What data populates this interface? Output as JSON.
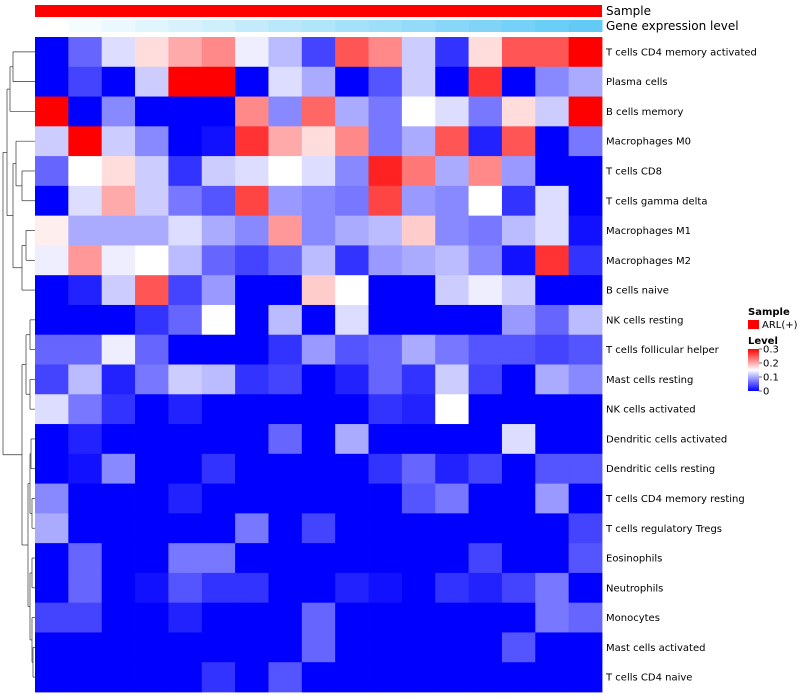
{
  "chart_data": {
    "type": "heatmap",
    "title": "",
    "annotation_tracks": [
      {
        "name": "Sample",
        "label": "Sample"
      },
      {
        "name": "Gene expression level",
        "label": "Gene expression level"
      }
    ],
    "row_labels": [
      "T cells CD4 memory activated",
      "Plasma cells",
      "B cells memory",
      "Macrophages M0",
      "T cells CD8",
      "T cells gamma delta",
      "Macrophages M1",
      "Macrophages M2",
      "B cells naive",
      "NK cells resting",
      "T cells follicular helper",
      "Mast cells resting",
      "NK cells activated",
      "Dendritic cells activated",
      "Dendritic cells resting",
      "T cells CD4 memory resting",
      "T cells regulatory  Tregs",
      "Eosinophils",
      "Neutrophils",
      "Monocytes",
      "Mast cells activated",
      "T cells CD4 naive"
    ],
    "n_columns": 17,
    "values": [
      [
        0.0,
        0.06,
        0.13,
        0.17,
        0.2,
        0.22,
        0.14,
        0.11,
        0.04,
        0.25,
        0.22,
        0.12,
        0.03,
        0.17,
        0.25,
        0.25,
        0.3
      ],
      [
        0.0,
        0.04,
        0.0,
        0.12,
        0.3,
        0.3,
        0.0,
        0.13,
        0.1,
        0.0,
        0.05,
        0.12,
        0.0,
        0.27,
        0.0,
        0.08,
        0.1
      ],
      [
        0.3,
        0.0,
        0.08,
        0.0,
        0.0,
        0.0,
        0.22,
        0.08,
        0.24,
        0.1,
        0.07,
        0.15,
        0.13,
        0.07,
        0.17,
        0.12,
        0.3
      ],
      [
        0.12,
        0.3,
        0.12,
        0.08,
        0.0,
        0.01,
        0.27,
        0.2,
        0.17,
        0.22,
        0.07,
        0.1,
        0.25,
        0.02,
        0.25,
        0.0,
        0.07
      ],
      [
        0.06,
        0.15,
        0.17,
        0.12,
        0.03,
        0.12,
        0.13,
        0.15,
        0.13,
        0.08,
        0.28,
        0.23,
        0.1,
        0.22,
        0.09,
        0.0,
        0.0
      ],
      [
        0.0,
        0.13,
        0.2,
        0.12,
        0.07,
        0.05,
        0.26,
        0.09,
        0.08,
        0.07,
        0.26,
        0.09,
        0.08,
        0.15,
        0.03,
        0.13,
        0.0
      ],
      [
        0.16,
        0.1,
        0.1,
        0.1,
        0.13,
        0.1,
        0.08,
        0.21,
        0.08,
        0.1,
        0.11,
        0.18,
        0.08,
        0.07,
        0.11,
        0.13,
        0.01
      ],
      [
        0.14,
        0.21,
        0.14,
        0.15,
        0.11,
        0.06,
        0.04,
        0.06,
        0.11,
        0.03,
        0.09,
        0.1,
        0.11,
        0.08,
        0.01,
        0.27,
        0.03
      ],
      [
        0.0,
        0.02,
        0.12,
        0.25,
        0.04,
        0.09,
        0.0,
        0.0,
        0.18,
        0.15,
        0.0,
        0.0,
        0.12,
        0.14,
        0.12,
        0.0,
        0.0
      ],
      [
        0.0,
        0.0,
        0.0,
        0.03,
        0.06,
        0.15,
        0.0,
        0.11,
        0.0,
        0.13,
        0.0,
        0.0,
        0.0,
        0.0,
        0.09,
        0.06,
        0.11
      ],
      [
        0.06,
        0.06,
        0.14,
        0.06,
        0.0,
        0.0,
        0.0,
        0.03,
        0.09,
        0.05,
        0.06,
        0.1,
        0.07,
        0.05,
        0.05,
        0.04,
        0.05
      ],
      [
        0.04,
        0.11,
        0.02,
        0.07,
        0.12,
        0.11,
        0.03,
        0.04,
        0.0,
        0.02,
        0.06,
        0.03,
        0.12,
        0.04,
        0.0,
        0.1,
        0.08
      ],
      [
        0.13,
        0.07,
        0.03,
        0.0,
        0.02,
        0.0,
        0.0,
        0.0,
        0.0,
        0.0,
        0.03,
        0.02,
        0.15,
        0.0,
        0.0,
        0.0,
        0.0
      ],
      [
        0.0,
        0.02,
        0.0,
        0.0,
        0.0,
        0.0,
        0.0,
        0.06,
        0.0,
        0.1,
        0.0,
        0.0,
        0.0,
        0.0,
        0.13,
        0.0,
        0.0
      ],
      [
        0.0,
        0.01,
        0.08,
        0.0,
        0.0,
        0.03,
        0.0,
        0.0,
        0.0,
        0.0,
        0.03,
        0.06,
        0.02,
        0.04,
        0.0,
        0.05,
        0.05
      ],
      [
        0.08,
        0.0,
        0.0,
        0.0,
        0.02,
        0.0,
        0.0,
        0.0,
        0.0,
        0.0,
        0.0,
        0.05,
        0.07,
        0.0,
        0.0,
        0.09,
        0.0
      ],
      [
        0.1,
        0.0,
        0.0,
        0.0,
        0.0,
        0.0,
        0.07,
        0.0,
        0.04,
        0.0,
        0.0,
        0.0,
        0.0,
        0.0,
        0.0,
        0.0,
        0.04
      ],
      [
        0.0,
        0.06,
        0.0,
        0.0,
        0.07,
        0.07,
        0.0,
        0.0,
        0.0,
        0.0,
        0.0,
        0.0,
        0.0,
        0.04,
        0.0,
        0.0,
        0.05
      ],
      [
        0.0,
        0.06,
        0.0,
        0.01,
        0.05,
        0.03,
        0.03,
        0.0,
        0.0,
        0.02,
        0.01,
        0.0,
        0.03,
        0.02,
        0.04,
        0.07,
        0.0
      ],
      [
        0.04,
        0.04,
        0.0,
        0.0,
        0.02,
        0.0,
        0.0,
        0.0,
        0.06,
        0.0,
        0.0,
        0.0,
        0.0,
        0.0,
        0.0,
        0.07,
        0.06
      ],
      [
        0.0,
        0.0,
        0.0,
        0.0,
        0.0,
        0.0,
        0.0,
        0.0,
        0.06,
        0.0,
        0.0,
        0.0,
        0.0,
        0.0,
        0.05,
        0.0,
        0.0
      ],
      [
        0.0,
        0.0,
        0.0,
        0.0,
        0.0,
        0.03,
        0.0,
        0.05,
        0.0,
        0.0,
        0.0,
        0.0,
        0.0,
        0.0,
        0.0,
        0.0,
        0.0
      ]
    ],
    "gene_expression_level": [
      0.0,
      0.06,
      0.12,
      0.18,
      0.24,
      0.3,
      0.36,
      0.42,
      0.48,
      0.54,
      0.6,
      0.66,
      0.72,
      0.78,
      0.84,
      0.9,
      0.96
    ],
    "sample_group": "ARL(+)",
    "legend": {
      "sample_title": "Sample",
      "sample_entry": "ARL(+)",
      "level_title": "Level",
      "ticks": [
        "0.3",
        "0.2",
        "0.1",
        "0"
      ],
      "tick_values": [
        0.3,
        0.2,
        0.1,
        0
      ],
      "range": [
        0,
        0.3
      ]
    },
    "row_dendrogram": true,
    "colors": {
      "low": "#0000ff",
      "mid": "#ffffff",
      "high": "#ff0000",
      "mid_value": 0.15,
      "sample_red": "#ff0000",
      "expr_low": "#ffffff",
      "expr_high": "#5bc8f5"
    }
  }
}
